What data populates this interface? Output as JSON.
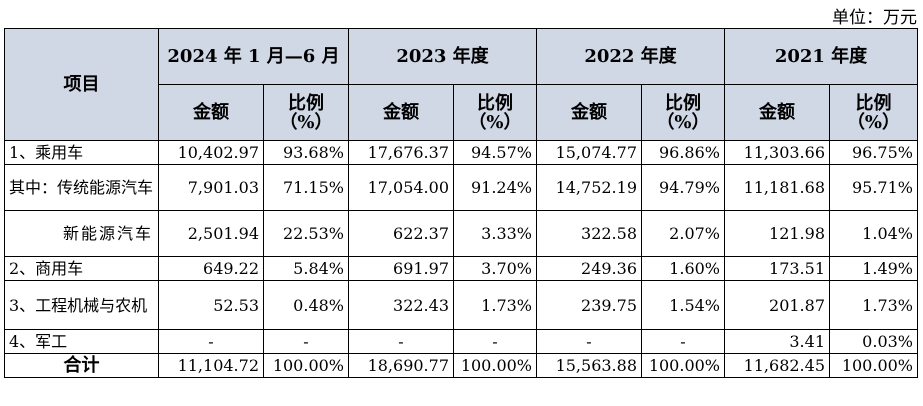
{
  "unit_label": "单位：万元",
  "header": {
    "item": "项目",
    "periods": [
      "2024 年 1 月—6 月",
      "2023 年度",
      "2022 年度",
      "2021 年度"
    ],
    "amount": "金额",
    "ratio": "比例（%）"
  },
  "rows": [
    {
      "item": "1、乘用车",
      "values": [
        "10,402.97",
        "93.68%",
        "17,676.37",
        "94.57%",
        "15,074.77",
        "96.86%",
        "11,303.66",
        "96.75%"
      ]
    },
    {
      "item": "其中：传统能源汽车",
      "values": [
        "7,901.03",
        "71.15%",
        "17,054.00",
        "91.24%",
        "14,752.19",
        "94.79%",
        "11,181.68",
        "95.71%"
      ]
    },
    {
      "item": "新能源汽车",
      "values": [
        "2,501.94",
        "22.53%",
        "622.37",
        "3.33%",
        "322.58",
        "2.07%",
        "121.98",
        "1.04%"
      ]
    },
    {
      "item": "2、商用车",
      "values": [
        "649.22",
        "5.84%",
        "691.97",
        "3.70%",
        "249.36",
        "1.60%",
        "173.51",
        "1.49%"
      ]
    },
    {
      "item": "3、工程机械与农机",
      "values": [
        "52.53",
        "0.48%",
        "322.43",
        "1.73%",
        "239.75",
        "1.54%",
        "201.87",
        "1.73%"
      ]
    },
    {
      "item": "4、军工",
      "values": [
        "-",
        "-",
        "-",
        "-",
        "-",
        "-",
        "3.41",
        "0.03%"
      ]
    },
    {
      "item": "合计",
      "values": [
        "11,104.72",
        "100.00%",
        "18,690.77",
        "100.00%",
        "15,563.88",
        "100.00%",
        "11,682.45",
        "100.00%"
      ]
    }
  ]
}
